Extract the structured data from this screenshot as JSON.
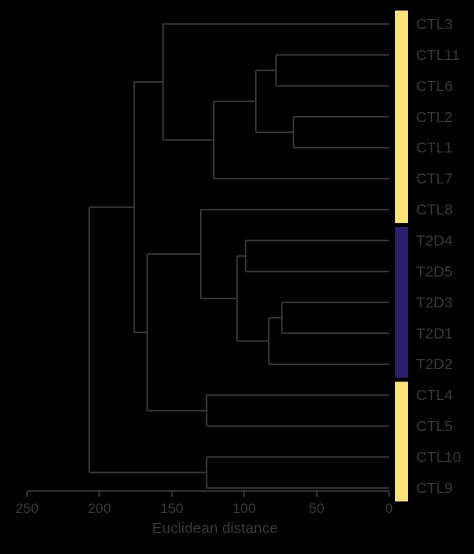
{
  "diagram": {
    "type": "dendrogram",
    "orientation": "horizontal, distance decreasing left to right",
    "xlabel": "Euclidean distance",
    "xlim": [
      250,
      0
    ],
    "xticks": [
      250,
      200,
      150,
      100,
      50,
      0
    ],
    "leaves": [
      "CTL3",
      "CTL11",
      "CTL6",
      "CTL2",
      "CTL1",
      "CTL7",
      "CTL8",
      "T2D4",
      "T2D5",
      "T2D3",
      "T2D1",
      "T2D2",
      "CTL4",
      "CTL5",
      "CTL10",
      "CTL9"
    ],
    "merges": [
      {
        "a": "CTL11",
        "b": "CTL6",
        "height": 78
      },
      {
        "a": "CTL2",
        "b": "CTL1",
        "height": 66
      },
      {
        "a": "CTL11,CTL6",
        "b": "CTL2,CTL1",
        "height": 92
      },
      {
        "a": "CTL11,CTL6,CTL2,CTL1",
        "b": "CTL7",
        "height": 121
      },
      {
        "a": "CTL3",
        "b": "CTL11,CTL6,CTL2,CTL1,CTL7",
        "height": 156
      },
      {
        "a": "T2D4",
        "b": "T2D5",
        "height": 99
      },
      {
        "a": "T2D3",
        "b": "T2D1",
        "height": 74
      },
      {
        "a": "T2D3,T2D1",
        "b": "T2D2",
        "height": 83
      },
      {
        "a": "T2D4,T2D5",
        "b": "T2D3,T2D1,T2D2",
        "height": 105
      },
      {
        "a": "CTL8",
        "b": "T2D4,T2D5,T2D3,T2D1,T2D2",
        "height": 130
      },
      {
        "a": "CTL4",
        "b": "CTL5",
        "height": 126
      },
      {
        "a": "CTL8,T2D",
        "b": "CTL4,CTL5",
        "height": 167
      },
      {
        "a": "CTL3-group",
        "b": "CTL8,T2D,CTL4,CTL5",
        "height": 176
      },
      {
        "a": "CTL10",
        "b": "CTL9",
        "height": 126
      },
      {
        "a": "all-other",
        "b": "CTL10,CTL9",
        "height": 207
      }
    ],
    "group_bars": [
      {
        "from": 0,
        "to": 6,
        "color": "#fde27a"
      },
      {
        "from": 7,
        "to": 11,
        "color": "#2e1f6e"
      },
      {
        "from": 12,
        "to": 15,
        "color": "#fde27a"
      }
    ],
    "colors": {
      "background": "#000000",
      "lines": "#3a3a3a",
      "text": "#3a3a3a",
      "ctl": "#fde27a",
      "t2d": "#2e1f6e"
    }
  }
}
